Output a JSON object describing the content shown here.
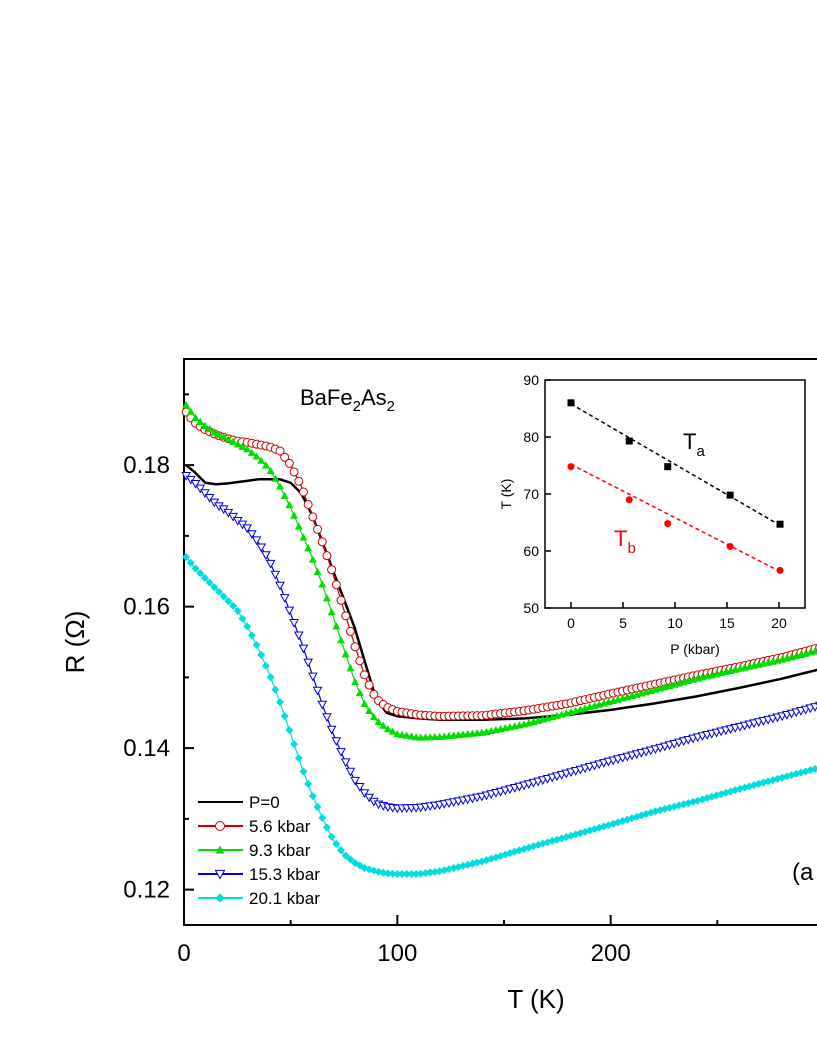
{
  "chart_data": [
    {
      "type": "line",
      "title": "BaFe2As2",
      "title_parts": {
        "base1": "BaFe",
        "sub1": "2",
        "base2": "As",
        "sub2": "2"
      },
      "xlabel": "T (K)",
      "ylabel_base": "R (",
      "ylabel_symbol": "Ω",
      "ylabel_close": ")",
      "xlim": [
        0,
        300
      ],
      "ylim": [
        0.115,
        0.195
      ],
      "xticks": [
        0,
        100,
        200,
        "3"
      ],
      "yticks": [
        0.12,
        0.14,
        0.16,
        0.18
      ],
      "panel_label": "(a",
      "legend_position": "bottom-left",
      "series": [
        {
          "name": "P=0",
          "color": "#000000",
          "marker": "none",
          "points": [
            [
              1,
              0.18
            ],
            [
              5,
              0.179
            ],
            [
              10,
              0.1775
            ],
            [
              15,
              0.1773
            ],
            [
              20,
              0.1774
            ],
            [
              25,
              0.1776
            ],
            [
              30,
              0.1778
            ],
            [
              35,
              0.178
            ],
            [
              40,
              0.178
            ],
            [
              45,
              0.178
            ],
            [
              50,
              0.1775
            ],
            [
              55,
              0.176
            ],
            [
              60,
              0.173
            ],
            [
              65,
              0.169
            ],
            [
              70,
              0.165
            ],
            [
              75,
              0.161
            ],
            [
              80,
              0.157
            ],
            [
              85,
              0.152
            ],
            [
              90,
              0.147
            ],
            [
              95,
              0.145
            ],
            [
              100,
              0.1445
            ],
            [
              110,
              0.1442
            ],
            [
              120,
              0.144
            ],
            [
              140,
              0.144
            ],
            [
              160,
              0.1442
            ],
            [
              180,
              0.1447
            ],
            [
              200,
              0.1454
            ],
            [
              220,
              0.1463
            ],
            [
              240,
              0.1473
            ],
            [
              260,
              0.1485
            ],
            [
              280,
              0.1498
            ],
            [
              300,
              0.1513
            ]
          ]
        },
        {
          "name": "5.6 kbar",
          "color": "#cc0000",
          "marker": "circle-open",
          "points": [
            [
              1,
              0.1875
            ],
            [
              5,
              0.186
            ],
            [
              10,
              0.185
            ],
            [
              15,
              0.1843
            ],
            [
              20,
              0.1838
            ],
            [
              25,
              0.1834
            ],
            [
              30,
              0.1832
            ],
            [
              35,
              0.1829
            ],
            [
              40,
              0.1826
            ],
            [
              45,
              0.182
            ],
            [
              50,
              0.18
            ],
            [
              55,
              0.177
            ],
            [
              60,
              0.173
            ],
            [
              65,
              0.169
            ],
            [
              70,
              0.1645
            ],
            [
              75,
              0.1595
            ],
            [
              80,
              0.1545
            ],
            [
              85,
              0.15
            ],
            [
              90,
              0.147
            ],
            [
              95,
              0.1458
            ],
            [
              100,
              0.1452
            ],
            [
              110,
              0.1447
            ],
            [
              120,
              0.1445
            ],
            [
              140,
              0.1446
            ],
            [
              160,
              0.1453
            ],
            [
              180,
              0.1463
            ],
            [
              200,
              0.1477
            ],
            [
              220,
              0.149
            ],
            [
              240,
              0.1503
            ],
            [
              260,
              0.1515
            ],
            [
              280,
              0.1528
            ],
            [
              300,
              0.1544
            ]
          ]
        },
        {
          "name": "9.3 kbar",
          "color": "#00dd00",
          "marker": "triangle-up-filled",
          "points": [
            [
              1,
              0.1885
            ],
            [
              5,
              0.1868
            ],
            [
              10,
              0.1855
            ],
            [
              15,
              0.1845
            ],
            [
              20,
              0.1838
            ],
            [
              25,
              0.183
            ],
            [
              30,
              0.1822
            ],
            [
              35,
              0.181
            ],
            [
              40,
              0.1795
            ],
            [
              45,
              0.177
            ],
            [
              50,
              0.174
            ],
            [
              55,
              0.1705
            ],
            [
              60,
              0.167
            ],
            [
              65,
              0.163
            ],
            [
              70,
              0.1585
            ],
            [
              75,
              0.154
            ],
            [
              80,
              0.1495
            ],
            [
              85,
              0.146
            ],
            [
              90,
              0.144
            ],
            [
              95,
              0.1428
            ],
            [
              100,
              0.142
            ],
            [
              110,
              0.1415
            ],
            [
              120,
              0.1416
            ],
            [
              140,
              0.1422
            ],
            [
              160,
              0.1434
            ],
            [
              180,
              0.145
            ],
            [
              200,
              0.1466
            ],
            [
              220,
              0.1482
            ],
            [
              240,
              0.1498
            ],
            [
              260,
              0.1512
            ],
            [
              280,
              0.1525
            ],
            [
              300,
              0.154
            ]
          ]
        },
        {
          "name": "15.3 kbar",
          "color": "#0000dd",
          "marker": "triangle-down-open",
          "points": [
            [
              1,
              0.1785
            ],
            [
              5,
              0.1775
            ],
            [
              10,
              0.176
            ],
            [
              15,
              0.1745
            ],
            [
              20,
              0.1735
            ],
            [
              25,
              0.1722
            ],
            [
              30,
              0.171
            ],
            [
              35,
              0.169
            ],
            [
              40,
              0.1665
            ],
            [
              45,
              0.163
            ],
            [
              50,
              0.159
            ],
            [
              55,
              0.155
            ],
            [
              60,
              0.1505
            ],
            [
              65,
              0.146
            ],
            [
              70,
              0.142
            ],
            [
              75,
              0.1385
            ],
            [
              80,
              0.1355
            ],
            [
              85,
              0.1335
            ],
            [
              90,
              0.1322
            ],
            [
              95,
              0.1317
            ],
            [
              100,
              0.1315
            ],
            [
              110,
              0.1316
            ],
            [
              120,
              0.132
            ],
            [
              140,
              0.1332
            ],
            [
              160,
              0.1348
            ],
            [
              180,
              0.1365
            ],
            [
              200,
              0.1382
            ],
            [
              220,
              0.1398
            ],
            [
              240,
              0.1415
            ],
            [
              260,
              0.143
            ],
            [
              280,
              0.1445
            ],
            [
              300,
              0.1462
            ]
          ]
        },
        {
          "name": "20.1 kbar",
          "color": "#00dddd",
          "marker": "diamond-filled",
          "points": [
            [
              1,
              0.167
            ],
            [
              5,
              0.1655
            ],
            [
              10,
              0.164
            ],
            [
              15,
              0.1625
            ],
            [
              20,
              0.161
            ],
            [
              25,
              0.1595
            ],
            [
              30,
              0.157
            ],
            [
              35,
              0.154
            ],
            [
              40,
              0.1505
            ],
            [
              45,
              0.1465
            ],
            [
              50,
              0.142
            ],
            [
              55,
              0.1375
            ],
            [
              60,
              0.1335
            ],
            [
              65,
              0.13
            ],
            [
              70,
              0.127
            ],
            [
              75,
              0.125
            ],
            [
              80,
              0.1238
            ],
            [
              85,
              0.123
            ],
            [
              90,
              0.1226
            ],
            [
              95,
              0.1223
            ],
            [
              100,
              0.1222
            ],
            [
              110,
              0.1222
            ],
            [
              120,
              0.1226
            ],
            [
              140,
              0.124
            ],
            [
              160,
              0.1258
            ],
            [
              180,
              0.1275
            ],
            [
              200,
              0.1292
            ],
            [
              220,
              0.131
            ],
            [
              240,
              0.1325
            ],
            [
              260,
              0.1342
            ],
            [
              280,
              0.1358
            ],
            [
              300,
              0.1374
            ]
          ]
        }
      ]
    },
    {
      "type": "scatter",
      "xlabel": "P (kbar)",
      "ylabel": "T (K)",
      "xlim": [
        -2.5,
        22.5
      ],
      "ylim": [
        50,
        90
      ],
      "xticks": [
        0,
        5,
        10,
        15,
        20
      ],
      "yticks": [
        50,
        60,
        70,
        80,
        90
      ],
      "series": [
        {
          "name_base": "T",
          "name_sub": "a",
          "color": "#000000",
          "marker": "square-filled",
          "x": [
            0,
            5.6,
            9.3,
            15.3,
            20.1
          ],
          "y": [
            86,
            79.3,
            74.8,
            69.8,
            64.7
          ],
          "fit": [
            [
              0,
              85.8
            ],
            [
              20.1,
              64.5
            ]
          ]
        },
        {
          "name_base": "T",
          "name_sub": "b",
          "color": "#ff0000",
          "marker": "circle-filled",
          "x": [
            0,
            5.6,
            9.3,
            15.3,
            20.1
          ],
          "y": [
            74.8,
            69,
            64.8,
            60.8,
            56.6
          ],
          "fit": [
            [
              0,
              75.2
            ],
            [
              20.1,
              56.4
            ]
          ]
        }
      ]
    }
  ]
}
